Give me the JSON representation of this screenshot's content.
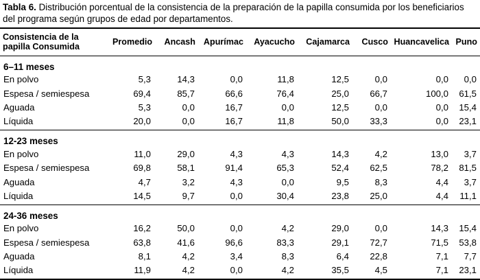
{
  "caption": {
    "label": "Tabla 6.",
    "text": "Distribución porcentual de la consistencia de la preparación de la papilla consumida por los beneficiarios del programa según grupos de edad por departamentos."
  },
  "table": {
    "row_header": "Consistencia de la papilla Consumida",
    "columns": [
      "Promedio",
      "Ancash",
      "Apurímac",
      "Ayacucho",
      "Cajamarca",
      "Cusco",
      "Huancavelica",
      "Puno"
    ],
    "groups": [
      {
        "title": "6–11 meses",
        "rows": [
          {
            "label": "En polvo",
            "values": [
              "5,3",
              "14,3",
              "0,0",
              "11,8",
              "12,5",
              "0,0",
              "0,0",
              "0,0"
            ]
          },
          {
            "label": "Espesa / semiespesa",
            "values": [
              "69,4",
              "85,7",
              "66,6",
              "76,4",
              "25,0",
              "66,7",
              "100,0",
              "61,5"
            ]
          },
          {
            "label": "Aguada",
            "values": [
              "5,3",
              "0,0",
              "16,7",
              "0,0",
              "12,5",
              "0,0",
              "0,0",
              "15,4"
            ]
          },
          {
            "label": "Líquida",
            "values": [
              "20,0",
              "0,0",
              "16,7",
              "11,8",
              "50,0",
              "33,3",
              "0,0",
              "23,1"
            ]
          }
        ]
      },
      {
        "title": "12-23 meses",
        "rows": [
          {
            "label": "En polvo",
            "values": [
              "11,0",
              "29,0",
              "4,3",
              "4,3",
              "14,3",
              "4,2",
              "13,0",
              "3,7"
            ]
          },
          {
            "label": "Espesa / semiespesa",
            "values": [
              "69,8",
              "58,1",
              "91,4",
              "65,3",
              "52,4",
              "62,5",
              "78,2",
              "81,5"
            ]
          },
          {
            "label": "Aguada",
            "values": [
              "4,7",
              "3,2",
              "4,3",
              "0,0",
              "9,5",
              "8,3",
              "4,4",
              "3,7"
            ]
          },
          {
            "label": "Líquida",
            "values": [
              "14,5",
              "9,7",
              "0,0",
              "30,4",
              "23,8",
              "25,0",
              "4,4",
              "11,1"
            ]
          }
        ]
      },
      {
        "title": "24-36 meses",
        "rows": [
          {
            "label": "En polvo",
            "values": [
              "16,2",
              "50,0",
              "0,0",
              "4,2",
              "29,0",
              "0,0",
              "14,3",
              "15,4"
            ]
          },
          {
            "label": "Espesa / semiespesa",
            "values": [
              "63,8",
              "41,6",
              "96,6",
              "83,3",
              "29,1",
              "72,7",
              "71,5",
              "53,8"
            ]
          },
          {
            "label": "Aguada",
            "values": [
              "8,1",
              "4,2",
              "3,4",
              "8,3",
              "6,4",
              "22,8",
              "7,1",
              "7,7"
            ]
          },
          {
            "label": "Líquida",
            "values": [
              "11,9",
              "4,2",
              "0,0",
              "4,2",
              "35,5",
              "4,5",
              "7,1",
              "23,1"
            ]
          }
        ]
      }
    ]
  }
}
